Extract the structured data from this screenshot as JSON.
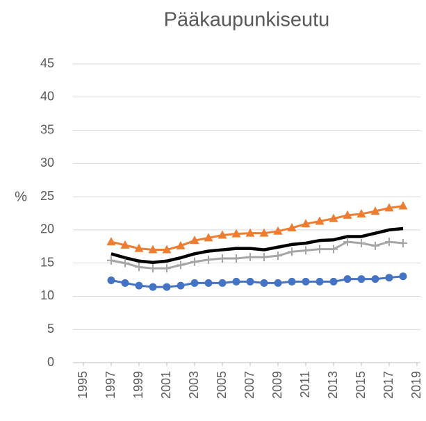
{
  "chart_data": {
    "type": "line",
    "title": "Pääkaupunkiseutu",
    "y_label": "%",
    "x": [
      1997,
      1998,
      1999,
      2000,
      2001,
      2002,
      2003,
      2004,
      2005,
      2006,
      2007,
      2008,
      2009,
      2010,
      2011,
      2012,
      2013,
      2014,
      2015,
      2016,
      2017,
      2018
    ],
    "xlim": [
      1995,
      2019
    ],
    "xticks": [
      1995,
      1997,
      1999,
      2001,
      2003,
      2005,
      2007,
      2009,
      2011,
      2013,
      2015,
      2017,
      2019
    ],
    "ylim": [
      0,
      45
    ],
    "yticks": [
      0,
      5,
      10,
      15,
      20,
      25,
      30,
      35,
      40,
      45
    ],
    "grid": true,
    "series": [
      {
        "color": "#ed7d31",
        "marker": "triangle",
        "values": [
          18.2,
          17.7,
          17.2,
          17.0,
          17.0,
          17.6,
          18.4,
          18.8,
          19.2,
          19.4,
          19.5,
          19.5,
          19.8,
          20.3,
          20.9,
          21.3,
          21.7,
          22.2,
          22.4,
          22.8,
          23.3,
          23.6
        ]
      },
      {
        "color": "#000000",
        "marker": "none",
        "values": [
          16.4,
          15.8,
          15.3,
          15.1,
          15.3,
          15.8,
          16.4,
          16.8,
          17.0,
          17.2,
          17.2,
          17.0,
          17.4,
          17.8,
          18.0,
          18.4,
          18.5,
          19.0,
          19.0,
          19.5,
          20.0,
          20.2
        ]
      },
      {
        "color": "#a5a5a5",
        "marker": "plus",
        "values": [
          15.4,
          15.0,
          14.4,
          14.2,
          14.2,
          14.7,
          15.2,
          15.5,
          15.7,
          15.7,
          15.9,
          15.9,
          16.1,
          16.7,
          16.9,
          17.1,
          17.1,
          18.2,
          18.0,
          17.6,
          18.2,
          18.0
        ]
      },
      {
        "color": "#4472c4",
        "marker": "circle",
        "values": [
          12.4,
          12.0,
          11.6,
          11.4,
          11.4,
          11.6,
          12.0,
          12.0,
          12.0,
          12.2,
          12.2,
          12.0,
          12.0,
          12.2,
          12.2,
          12.2,
          12.2,
          12.6,
          12.6,
          12.6,
          12.8,
          13.0
        ]
      }
    ]
  }
}
